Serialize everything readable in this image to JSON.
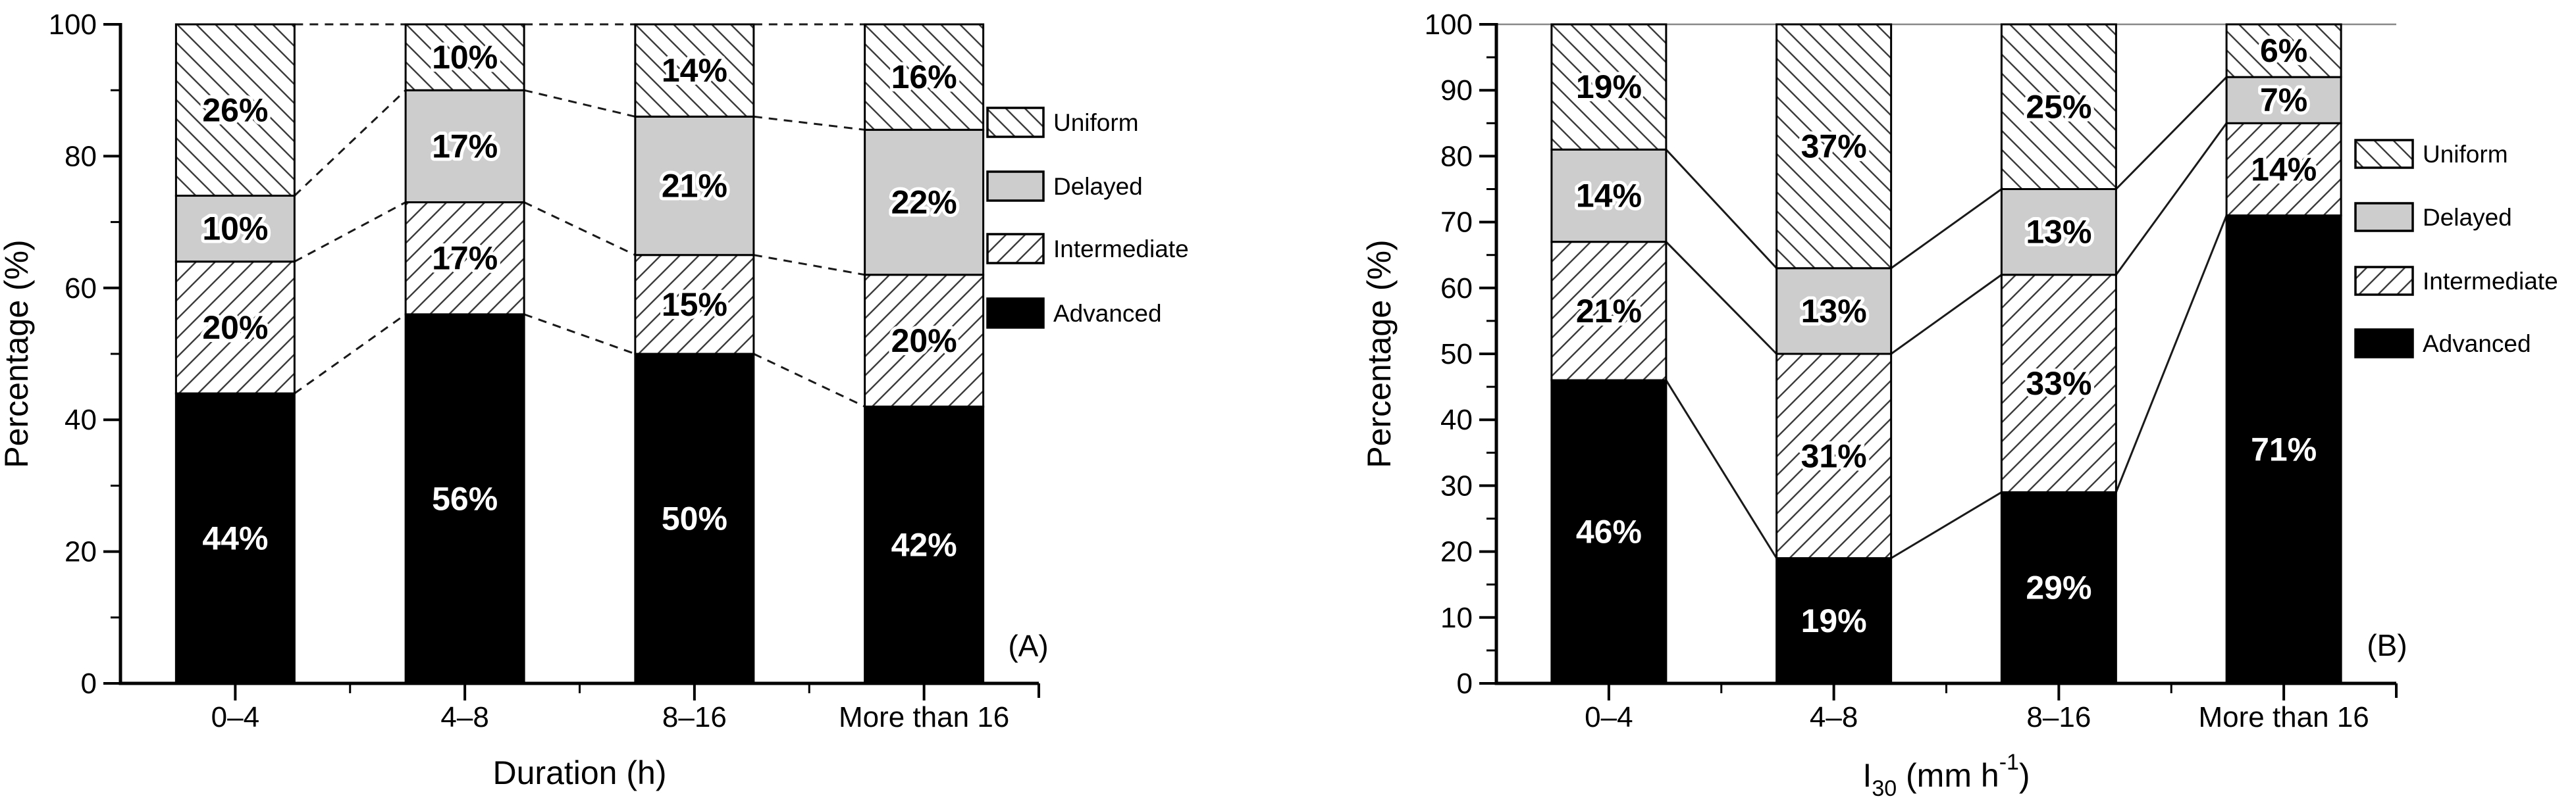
{
  "figure": {
    "background": "#ffffff",
    "ylabel": "Percentage (%)"
  },
  "colors": {
    "black": "#000000",
    "delayed_gray": "#cdcdcd",
    "hatch_line": "#3c3c3c",
    "top_rule_gray": "#888888",
    "label_on_dark": "#ffffff",
    "label_on_light": "#000000"
  },
  "legend": {
    "items": [
      {
        "label": "Uniform",
        "pattern": "hatch-backward"
      },
      {
        "label": "Delayed",
        "pattern": "solid-gray"
      },
      {
        "label": "Intermediate",
        "pattern": "hatch-forward"
      },
      {
        "label": "Advanced",
        "pattern": "solid-black"
      }
    ]
  },
  "chart_data": [
    {
      "id": "A",
      "type": "bar",
      "subtype": "stacked-percent-bar",
      "panel_label": "(A)",
      "title": "",
      "xlabel": "Duration (h)",
      "xlabel_rich": [
        {
          "t": "Duration (h)"
        }
      ],
      "ylabel": "Percentage (%)",
      "ylim": [
        0,
        100
      ],
      "y_major_step": 20,
      "y_minor_step": 10,
      "ytick_labels": [
        "0",
        "20",
        "40",
        "60",
        "80",
        "100"
      ],
      "grid": false,
      "connector_style": "dashed",
      "top_rule": false,
      "legend_position": "right",
      "categories": [
        "0–4",
        "4–8",
        "8–16",
        "More than 16"
      ],
      "series": [
        {
          "name": "Advanced",
          "pattern": "solid-black",
          "values": [
            44,
            56,
            50,
            42
          ],
          "labels": [
            "44%",
            "56%",
            "50%",
            "42%"
          ]
        },
        {
          "name": "Intermediate",
          "pattern": "hatch-forward",
          "values": [
            20,
            17,
            15,
            20
          ],
          "labels": [
            "20%",
            "17%",
            "15%",
            "20%"
          ]
        },
        {
          "name": "Delayed",
          "pattern": "solid-gray",
          "values": [
            10,
            17,
            21,
            22
          ],
          "labels": [
            "10%",
            "17%",
            "21%",
            "22%"
          ]
        },
        {
          "name": "Uniform",
          "pattern": "hatch-backward",
          "values": [
            26,
            10,
            14,
            16
          ],
          "labels": [
            "26%",
            "10%",
            "14%",
            "16%"
          ]
        }
      ]
    },
    {
      "id": "B",
      "type": "bar",
      "subtype": "stacked-percent-bar",
      "panel_label": "(B)",
      "title": "",
      "xlabel": "I30 (mm h-1)",
      "xlabel_rich": [
        {
          "t": "I"
        },
        {
          "t": "30",
          "style": "sub"
        },
        {
          "t": " (mm h"
        },
        {
          "t": "-1",
          "style": "sup"
        },
        {
          "t": ")"
        }
      ],
      "ylabel": "Percentage (%)",
      "ylim": [
        0,
        100
      ],
      "y_major_step": 10,
      "y_minor_step": 5,
      "ytick_labels": [
        "0",
        "10",
        "20",
        "30",
        "40",
        "50",
        "60",
        "70",
        "80",
        "90",
        "100"
      ],
      "grid": false,
      "connector_style": "solid",
      "top_rule": true,
      "legend_position": "right",
      "categories": [
        "0–4",
        "4–8",
        "8–16",
        "More than 16"
      ],
      "series": [
        {
          "name": "Advanced",
          "pattern": "solid-black",
          "values": [
            46,
            19,
            29,
            71
          ],
          "labels": [
            "46%",
            "19%",
            "29%",
            "71%"
          ]
        },
        {
          "name": "Intermediate",
          "pattern": "hatch-forward",
          "values": [
            21,
            31,
            33,
            14
          ],
          "labels": [
            "21%",
            "31%",
            "33%",
            "14%"
          ]
        },
        {
          "name": "Delayed",
          "pattern": "solid-gray",
          "values": [
            14,
            13,
            13,
            7
          ],
          "labels": [
            "14%",
            "13%",
            "13%",
            "7%"
          ]
        },
        {
          "name": "Uniform",
          "pattern": "hatch-backward",
          "values": [
            19,
            37,
            25,
            6
          ],
          "labels": [
            "19%",
            "37%",
            "25%",
            "6%"
          ]
        }
      ]
    }
  ]
}
